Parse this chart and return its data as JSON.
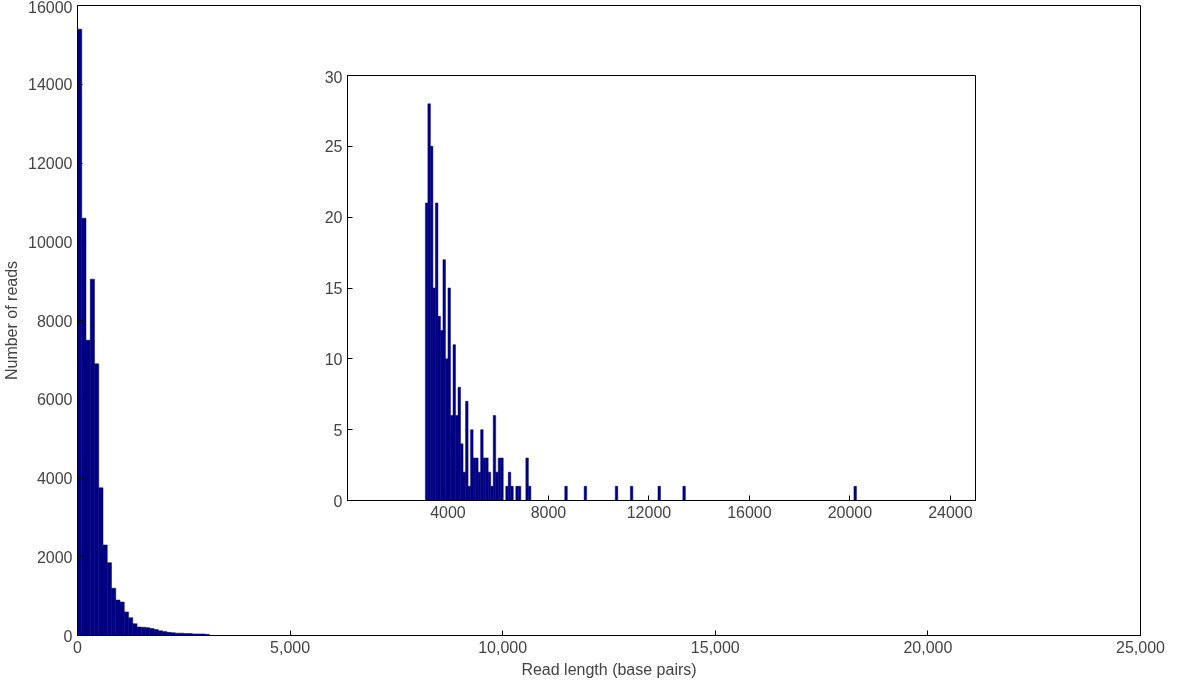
{
  "chart_data": [
    {
      "type": "histogram",
      "xlabel": "Read length (base pairs)",
      "ylabel": "Number of reads",
      "color": "#000080",
      "bins": [
        0,
        100,
        200,
        300,
        400,
        500,
        600,
        700,
        800,
        900,
        1000,
        1100,
        1200,
        1300,
        1400,
        1500,
        1600,
        1700,
        1800,
        1900,
        2000,
        2100,
        2200,
        2300,
        2400,
        2500,
        2600,
        2700,
        2800,
        2900,
        3000,
        3100
      ],
      "values": [
        15400,
        10600,
        7500,
        9050,
        6900,
        3750,
        2300,
        1850,
        1200,
        900,
        850,
        600,
        450,
        300,
        215,
        210,
        200,
        180,
        150,
        120,
        100,
        80,
        70,
        60,
        60,
        50,
        50,
        40,
        40,
        40,
        30
      ],
      "xlim": [
        0,
        25000
      ],
      "ylim": [
        0,
        16000
      ],
      "xticks": [
        0,
        {
          "value": 5000,
          "label": "5,000"
        },
        {
          "value": 10000,
          "label": "10,000"
        },
        {
          "value": 15000,
          "label": "15,000"
        },
        {
          "value": 20000,
          "label": "20,000"
        },
        {
          "value": 25000,
          "label": "25,000"
        }
      ],
      "yticks": [
        0,
        2000,
        4000,
        6000,
        8000,
        10000,
        12000,
        14000,
        16000
      ]
    },
    {
      "type": "histogram",
      "color": "#000080",
      "bins": [
        3100,
        3200,
        3300,
        3400,
        3500,
        3600,
        3700,
        3800,
        3900,
        4000,
        4100,
        4200,
        4300,
        4400,
        4500,
        4600,
        4700,
        4800,
        4900,
        5000,
        5100,
        5200,
        5300,
        5400,
        5500,
        5600,
        5700,
        5800,
        5900,
        6000,
        6100,
        6200,
        6300,
        6400,
        6500,
        6600,
        6700,
        6800,
        6900,
        7000,
        7100,
        7200,
        7300,
        8650,
        8750,
        9420,
        9520,
        10660,
        10760,
        11260,
        11360,
        12360,
        12460,
        13350,
        13450,
        20160,
        20260
      ],
      "values": [
        21,
        28,
        25,
        15,
        21,
        13,
        12,
        17,
        10,
        15,
        6,
        11,
        6,
        8,
        4,
        2,
        7,
        1,
        5,
        3,
        3,
        2,
        5,
        3,
        3,
        2,
        1,
        6,
        2,
        3,
        3,
        0,
        1,
        2,
        1,
        0,
        1,
        1,
        0,
        0,
        3,
        1,
        0,
        1,
        0,
        1,
        0,
        1,
        0,
        1,
        0,
        1,
        0,
        1,
        0,
        1
      ],
      "xlim": [
        0,
        25000
      ],
      "ylim": [
        0,
        30
      ],
      "xticks": [
        4000,
        8000,
        12000,
        16000,
        20000,
        24000
      ],
      "yticks": [
        0,
        5,
        10,
        15,
        20,
        25,
        30
      ]
    }
  ]
}
